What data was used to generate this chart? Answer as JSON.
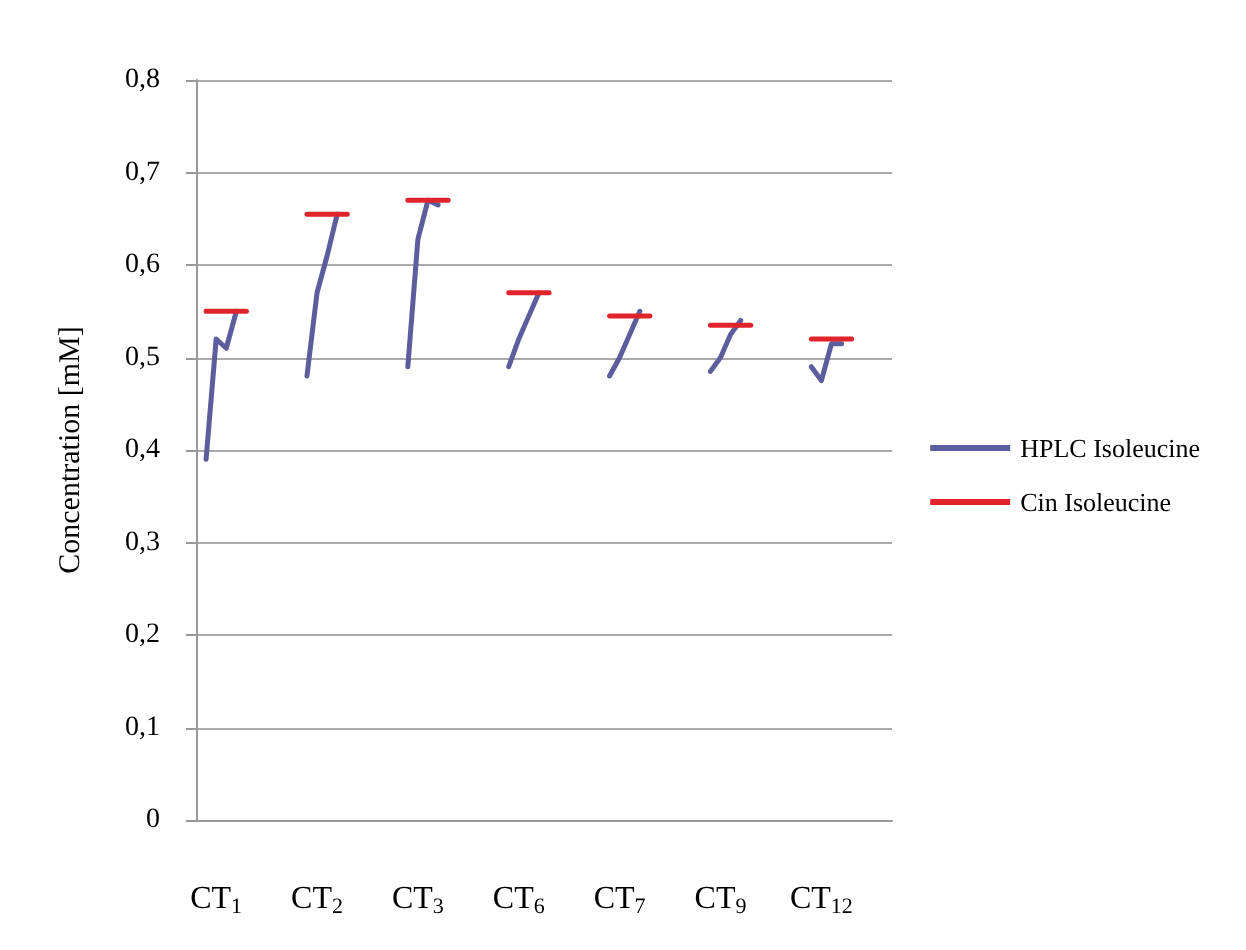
{
  "chart_data": {
    "type": "line",
    "ylabel": "Concentration [mM]",
    "categories": [
      null,
      null,
      "CT$_{1}$",
      null,
      null,
      null,
      null,
      null,
      null,
      null,
      null,
      null,
      "CT$_{2}$",
      null,
      null,
      null,
      null,
      null,
      null,
      null,
      null,
      null,
      "CT$_{3}$",
      null,
      null,
      null,
      null,
      null,
      null,
      null,
      null,
      null,
      "CT$_{6}$",
      null,
      null,
      null,
      null,
      null,
      null,
      null,
      null,
      null,
      "CT$_{7}$",
      null,
      null,
      null,
      null,
      null,
      null,
      null,
      null,
      null,
      "CT$_{9}$",
      null,
      null,
      null,
      null,
      null,
      null,
      null,
      null,
      null,
      "CT$_{12}$",
      null,
      null,
      null,
      null,
      null,
      null,
      null
    ],
    "series": [
      {
        "name": "HPLC Isoleucine",
        "color": "#5b5d9c",
        "values": [
          null,
          0.39,
          0.52,
          0.51,
          0.55,
          null,
          null,
          null,
          null,
          null,
          null,
          0.48,
          0.57,
          0.61,
          0.655,
          null,
          null,
          null,
          null,
          null,
          null,
          0.49,
          0.628,
          0.67,
          0.665,
          null,
          null,
          null,
          null,
          null,
          null,
          0.49,
          0.52,
          0.545,
          0.57,
          null,
          null,
          null,
          null,
          null,
          null,
          0.48,
          0.5,
          0.525,
          0.55,
          null,
          null,
          null,
          null,
          null,
          null,
          0.485,
          0.5,
          0.525,
          0.54,
          null,
          null,
          null,
          null,
          null,
          null,
          0.49,
          0.475,
          0.515,
          0.515,
          null,
          null,
          null,
          null,
          null
        ]
      },
      {
        "name": "Cin Isoleucine",
        "color": "#e0242b",
        "values": [
          null,
          0.55,
          0.55,
          0.55,
          0.55,
          0.55,
          null,
          null,
          null,
          null,
          null,
          0.655,
          0.655,
          0.655,
          0.655,
          0.655,
          null,
          null,
          null,
          null,
          null,
          0.67,
          0.67,
          0.67,
          0.67,
          0.67,
          null,
          null,
          null,
          null,
          null,
          0.57,
          0.57,
          0.57,
          0.57,
          0.57,
          null,
          null,
          null,
          null,
          null,
          0.545,
          0.545,
          0.545,
          0.545,
          0.545,
          null,
          null,
          null,
          null,
          null,
          0.535,
          0.535,
          0.535,
          0.535,
          0.535,
          null,
          null,
          null,
          null,
          null,
          0.52,
          0.52,
          0.52,
          0.52,
          0.52,
          null,
          null,
          null,
          null
        ]
      }
    ],
    "ylim": [
      0,
      0.8
    ],
    "yticks": [
      0,
      {
        "value": 0.1,
        "label": "0,1"
      },
      {
        "value": 0.2,
        "label": "0,2"
      },
      {
        "value": 0.3,
        "label": "0,3"
      },
      {
        "value": 0.4,
        "label": "0,4"
      },
      {
        "value": 0.5,
        "label": "0,5"
      },
      {
        "value": 0.6,
        "label": "0,6"
      },
      {
        "value": 0.7,
        "label": "0,7"
      },
      {
        "value": 0.8,
        "label": "0,8"
      }
    ],
    "grid": "y",
    "legend": "right",
    "marker": "none",
    "line_style": "solid"
  }
}
